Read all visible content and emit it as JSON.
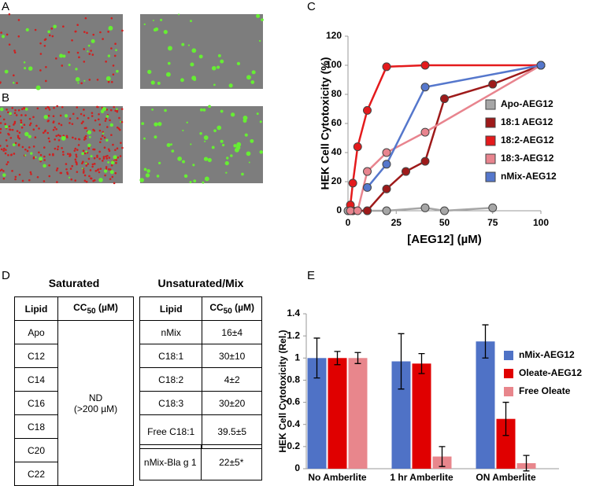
{
  "panels": {
    "a": "A",
    "b": "B",
    "c": "C",
    "d": "D",
    "e": "E"
  },
  "tables": {
    "saturated": {
      "title": "Saturated",
      "header": {
        "lipid": "Lipid",
        "cc": "CC",
        "sub": "50",
        "unit": " (µM)"
      },
      "lipids": [
        "Apo",
        "C12",
        "C14",
        "C16",
        "C18",
        "C20",
        "C22"
      ],
      "result": "ND",
      "result_note": "(>200 µM)"
    },
    "unsaturated": {
      "title": "Unsaturated/Mix",
      "header": {
        "lipid": "Lipid",
        "cc": "CC",
        "sub": "50",
        "unit": " (µM)"
      },
      "rows": [
        [
          "nMix",
          "16±4"
        ],
        [
          "C18:1",
          "30±10"
        ],
        [
          "C18:2",
          "4±2"
        ],
        [
          "C18:3",
          "30±20"
        ],
        [
          "Free C18:1",
          "39.5±5"
        ]
      ],
      "extra": [
        "nMix-Bla g 1",
        "22±5*"
      ]
    }
  },
  "chart_data": [
    {
      "type": "line",
      "xlabel": "[AEG12] (µM)",
      "ylabel": "HEK Cell Cytotoxicity (%)",
      "xlim": [
        0,
        100
      ],
      "xticks": [
        0,
        25,
        50,
        75,
        100
      ],
      "ylim": [
        0,
        120
      ],
      "yticks": [
        0,
        20,
        40,
        60,
        80,
        100,
        120
      ],
      "series": [
        {
          "name": "Apo-AEG12",
          "color": "#a6a6a6",
          "x": [
            0,
            10,
            20,
            40,
            50,
            75
          ],
          "values": [
            0,
            0,
            0,
            2,
            0,
            2
          ]
        },
        {
          "name": "18:1 AEG12",
          "color": "#9e1a1a",
          "x": [
            2.5,
            10,
            20,
            30,
            40,
            50,
            75,
            100
          ],
          "values": [
            0,
            0,
            15,
            27,
            34,
            77,
            87,
            100
          ]
        },
        {
          "name": "18:2-AEG12",
          "color": "#e41a1c",
          "x": [
            1.25,
            2.5,
            5,
            10,
            20,
            40,
            100
          ],
          "values": [
            4,
            19,
            44,
            69,
            99,
            100,
            100
          ]
        },
        {
          "name": "18:3-AEG12",
          "color": "#e8848e",
          "x": [
            1.25,
            5,
            10,
            20,
            40,
            100
          ],
          "values": [
            0,
            0,
            27,
            40,
            54,
            100
          ]
        },
        {
          "name": "nMix-AEG12",
          "color": "#5577cc",
          "x": [
            10,
            20,
            40,
            100
          ],
          "values": [
            16,
            32,
            85,
            100
          ]
        }
      ]
    },
    {
      "type": "bar",
      "ylabel": "HEK Cell Cytotoxicity (Rel.)",
      "categories": [
        "No Amberlite",
        "1 hr Amberlite",
        "ON Amberlite"
      ],
      "ylim": [
        0,
        1.4
      ],
      "yticks": [
        0,
        0.2,
        0.4,
        0.6,
        0.8,
        1,
        1.2,
        1.4
      ],
      "series": [
        {
          "name": "nMix-AEG12",
          "color": "#4f72c6",
          "values": [
            1.0,
            0.97,
            1.15
          ],
          "errors": [
            0.18,
            0.25,
            0.15
          ]
        },
        {
          "name": "Oleate-AEG12",
          "color": "#e00000",
          "values": [
            1.0,
            0.95,
            0.45
          ],
          "errors": [
            0.06,
            0.09,
            0.15
          ]
        },
        {
          "name": "Free Oleate",
          "color": "#e8868c",
          "values": [
            1.0,
            0.11,
            0.05
          ],
          "errors": [
            0.05,
            0.09,
            0.07
          ]
        }
      ]
    }
  ]
}
